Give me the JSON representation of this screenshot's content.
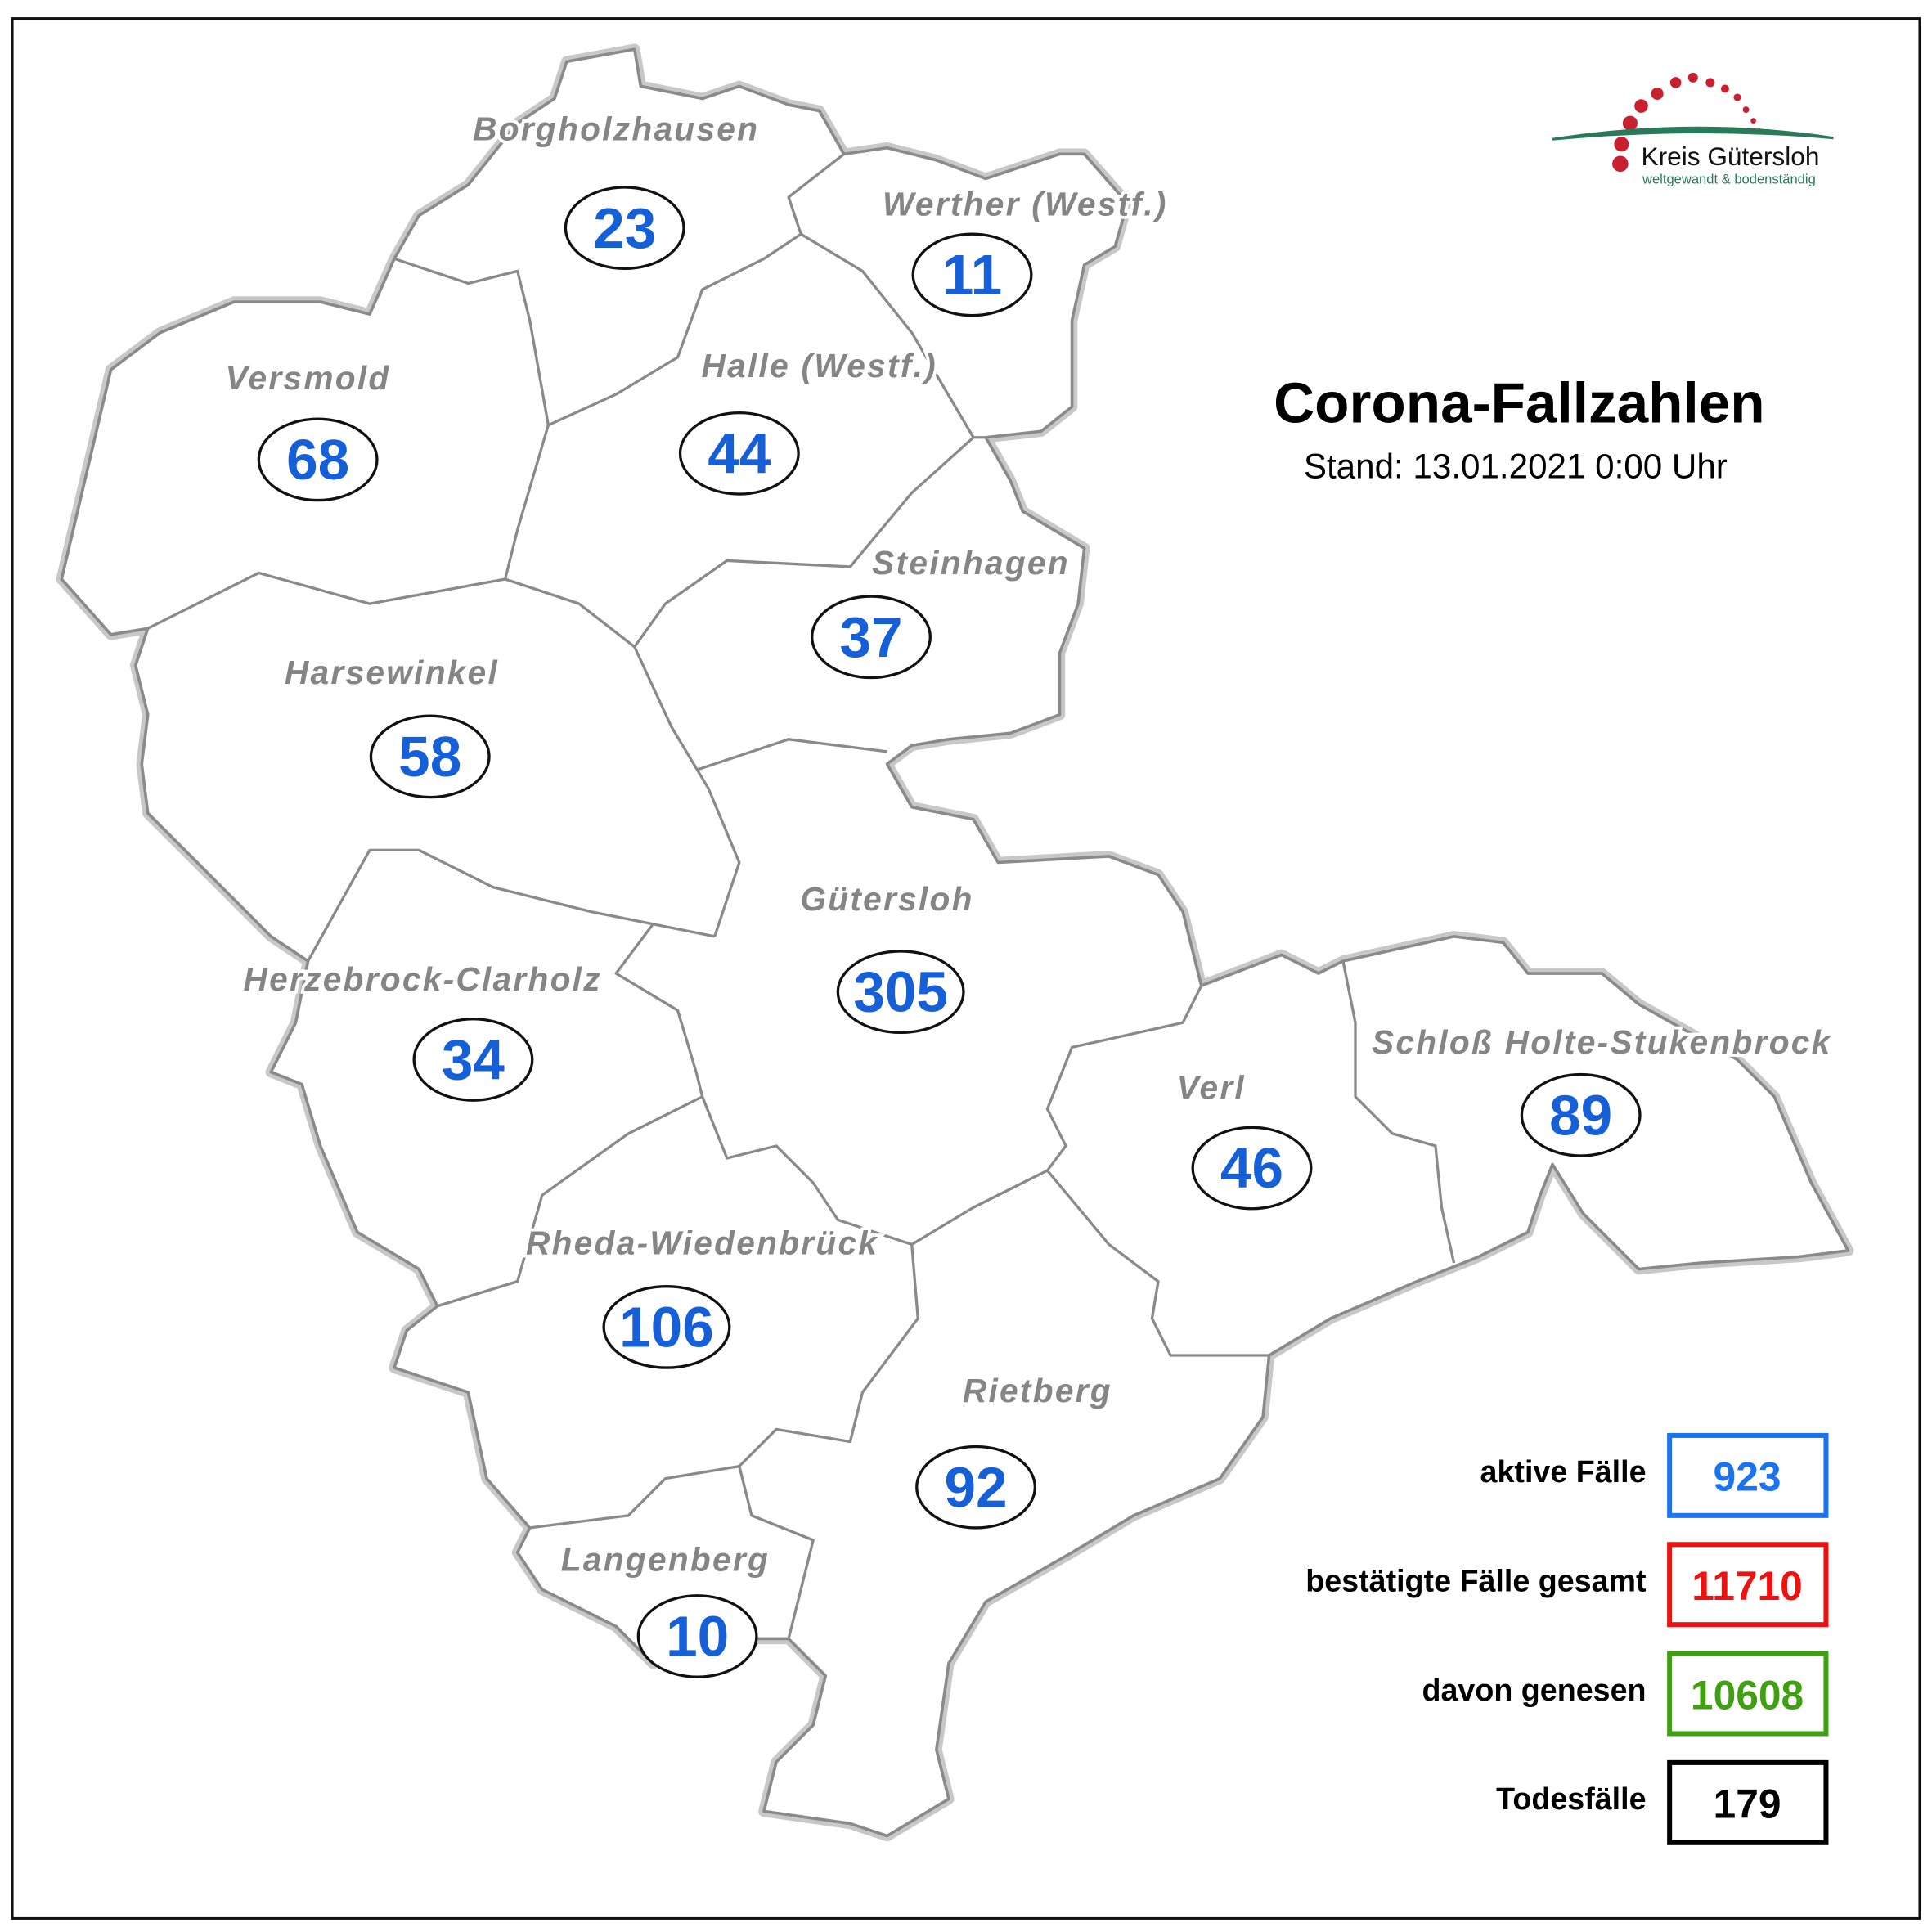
{
  "title": "Corona-Fallzahlen",
  "stand": "Stand: 13.01.2021 0:00 Uhr",
  "logo": {
    "name": "Kreis Gütersloh",
    "slogan": "weltgewandt & bodenständig",
    "dot_color": "#c8202e",
    "arc_color": "#2a7a5a"
  },
  "case_color": "#1560d8",
  "regions": [
    {
      "name": "Borgholzhausen",
      "cases": "23"
    },
    {
      "name": "Werther (Westf.)",
      "cases": "11"
    },
    {
      "name": "Versmold",
      "cases": "68"
    },
    {
      "name": "Halle (Westf.)",
      "cases": "44"
    },
    {
      "name": "Steinhagen",
      "cases": "37"
    },
    {
      "name": "Harsewinkel",
      "cases": "58"
    },
    {
      "name": "Gütersloh",
      "cases": "305"
    },
    {
      "name": "Herzebrock-Clarholz",
      "cases": "34"
    },
    {
      "name": "Verl",
      "cases": "46"
    },
    {
      "name": "Schloß Holte-Stukenbrock",
      "cases": "89"
    },
    {
      "name": "Rheda-Wiedenbrück",
      "cases": "106"
    },
    {
      "name": "Rietberg",
      "cases": "92"
    },
    {
      "name": "Langenberg",
      "cases": "10"
    }
  ],
  "legend": [
    {
      "label": "aktive Fälle",
      "value": "923",
      "color": "#1a73f0"
    },
    {
      "label": "bestätigte Fälle gesamt",
      "value": "11710",
      "color": "#ee1111"
    },
    {
      "label": "davon genesen",
      "value": "10608",
      "color": "#3fa012"
    },
    {
      "label": "Todesfälle",
      "value": "179",
      "color": "#000000"
    }
  ]
}
